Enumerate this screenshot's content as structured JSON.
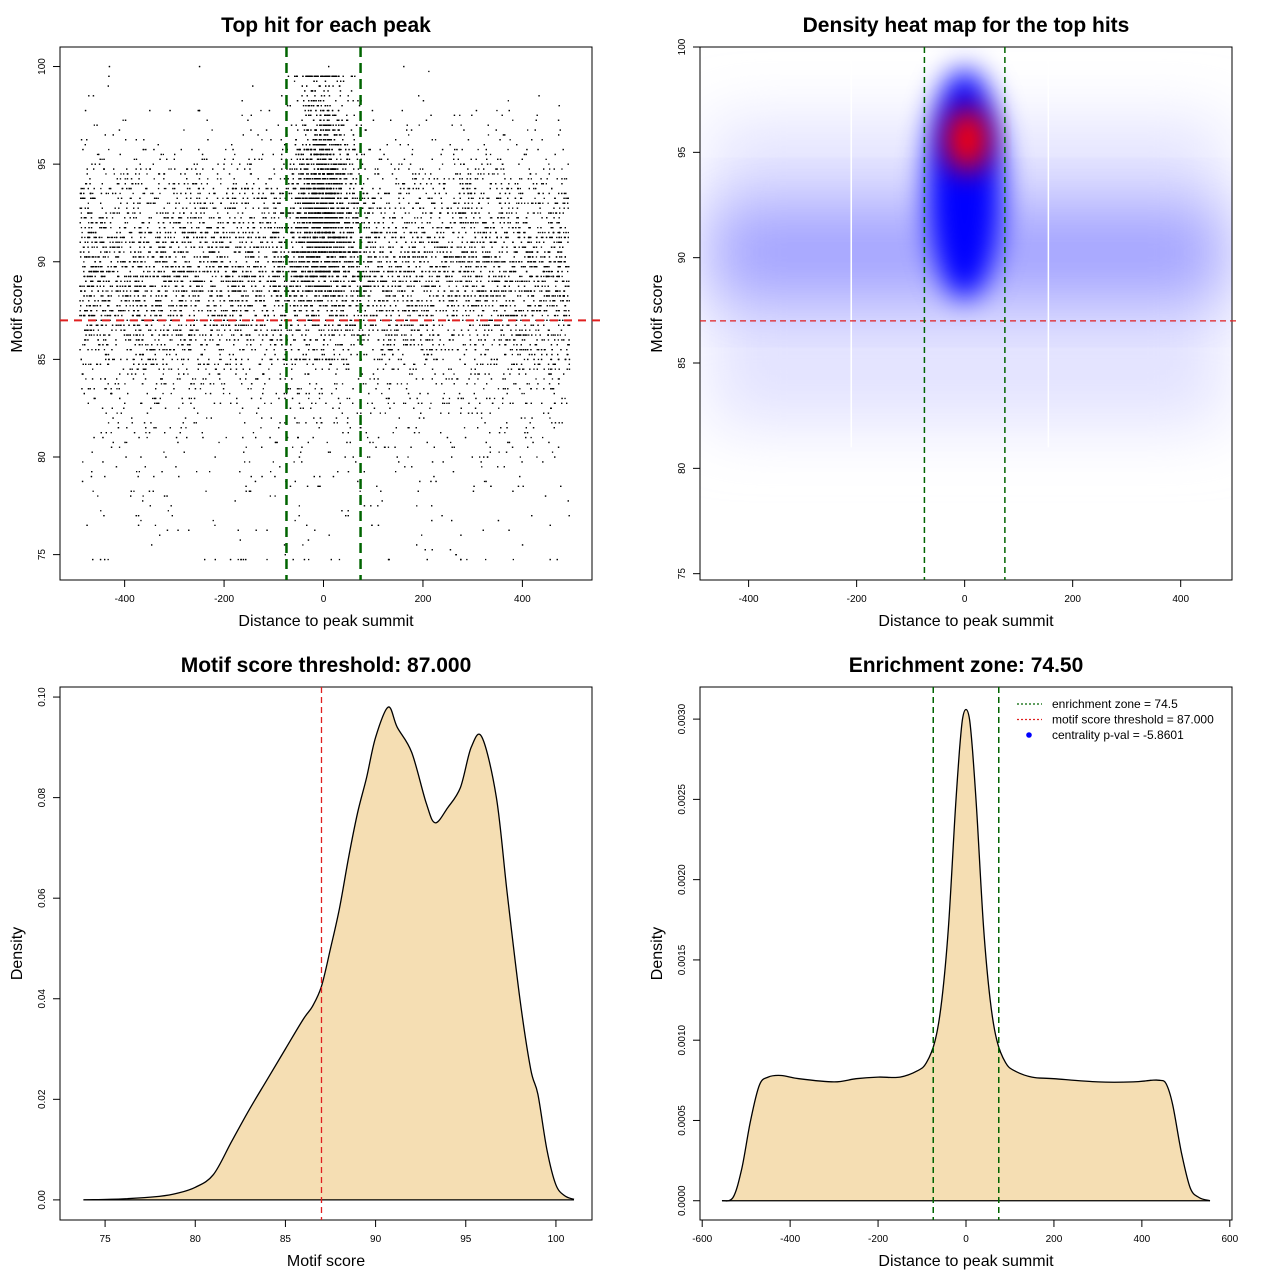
{
  "chart_data": [
    {
      "type": "scatter",
      "title": "Top hit for each peak",
      "xlabel": "Distance to peak summit",
      "ylabel": "Motif score",
      "xlim": [
        -530,
        540
      ],
      "ylim": [
        73.7,
        101.0
      ],
      "xticks": [
        -400,
        -200,
        0,
        200,
        400
      ],
      "yticks": [
        75,
        80,
        85,
        90,
        95,
        100
      ],
      "point_distribution": {
        "x_range": [
          -490,
          495
        ],
        "center_band": [
          -74.5,
          74.5
        ],
        "score_range": [
          74.7,
          100.0
        ],
        "peak_score_flanks": 90,
        "peak_score_center": 95.5
      },
      "annotations": {
        "score_threshold": 87.0,
        "threshold_color": "#e02020",
        "enrichment_zone": [
          -74.5,
          74.5
        ],
        "zone_color": "#006400"
      }
    },
    {
      "type": "heatmap",
      "title": "Density heat map for the top hits",
      "xlabel": "Distance to peak summit",
      "ylabel": "Motif score",
      "xlim": [
        -490,
        495
      ],
      "ylim": [
        74.7,
        100.0
      ],
      "xticks": [
        -400,
        -200,
        0,
        200,
        400
      ],
      "yticks": [
        75,
        80,
        85,
        90,
        95,
        100
      ],
      "color_scale": [
        "#ffffff",
        "#8c8cff",
        "#0000ff",
        "#ff0000"
      ],
      "density_peaks": [
        {
          "x": 5,
          "y": 95.6,
          "level": "max",
          "color": "#ff0000"
        },
        {
          "x": 0,
          "y": 92.0,
          "level": "high",
          "color": "#0000ff"
        },
        {
          "x": -400,
          "y": 90.0,
          "level": "medium",
          "color": "#8c8cff"
        },
        {
          "x": 400,
          "y": 90.0,
          "level": "medium",
          "color": "#8c8cff"
        }
      ],
      "annotations": {
        "score_threshold": 87.0,
        "threshold_color": "#e02020",
        "enrichment_zone": [
          -74.5,
          74.5
        ],
        "zone_color": "#006400"
      }
    },
    {
      "type": "area",
      "title": "Motif score threshold: 87.000",
      "xlabel": "Motif score",
      "ylabel": "Density",
      "xlim": [
        72.5,
        102.0
      ],
      "ylim": [
        -0.004,
        0.102
      ],
      "xticks": [
        75,
        80,
        85,
        90,
        95,
        100
      ],
      "yticks": [
        0.0,
        0.02,
        0.04,
        0.06,
        0.08,
        0.1
      ],
      "ytick_labels": [
        "0.00",
        "0.02",
        "0.04",
        "0.06",
        "0.08",
        "0.10"
      ],
      "fill_color": "#f5deb3",
      "line_color": "#000000",
      "x": [
        73.8,
        76,
        78,
        79,
        80,
        81,
        82,
        83,
        84,
        85,
        86,
        86.5,
        87,
        87.5,
        88,
        88.5,
        89,
        89.5,
        90,
        90.7,
        91.2,
        92,
        92.8,
        93.3,
        94,
        94.7,
        95.3,
        95.9,
        96.7,
        97.3,
        98,
        98.6,
        99,
        99.5,
        100,
        100.5,
        101
      ],
      "y": [
        0.0,
        0.0002,
        0.0007,
        0.0013,
        0.0025,
        0.005,
        0.0115,
        0.018,
        0.024,
        0.03,
        0.036,
        0.0385,
        0.0425,
        0.05,
        0.058,
        0.068,
        0.077,
        0.084,
        0.092,
        0.098,
        0.094,
        0.089,
        0.079,
        0.075,
        0.078,
        0.082,
        0.09,
        0.092,
        0.08,
        0.061,
        0.04,
        0.026,
        0.021,
        0.01,
        0.003,
        0.0008,
        0.0001
      ],
      "annotations": {
        "vline": 87.0,
        "vline_color": "#e02020"
      }
    },
    {
      "type": "area",
      "title": "Enrichment zone: 74.50",
      "xlabel": "Distance to peak summit",
      "ylabel": "Density",
      "xlim": [
        -605,
        605
      ],
      "ylim": [
        -0.00012,
        0.0032
      ],
      "xticks": [
        -600,
        -400,
        -200,
        0,
        200,
        400,
        600
      ],
      "yticks": [
        0.0,
        0.0005,
        0.001,
        0.0015,
        0.002,
        0.0025,
        0.003
      ],
      "ytick_labels": [
        "0.0000",
        "0.0005",
        "0.0010",
        "0.0015",
        "0.0020",
        "0.0025",
        "0.0030"
      ],
      "fill_color": "#f5deb3",
      "line_color": "#000000",
      "x": [
        -555,
        -530,
        -510,
        -490,
        -470,
        -450,
        -420,
        -380,
        -300,
        -250,
        -200,
        -150,
        -110,
        -90,
        -70,
        -55,
        -40,
        -25,
        -15,
        -8,
        0,
        8,
        15,
        25,
        40,
        55,
        70,
        90,
        110,
        150,
        200,
        300,
        380,
        420,
        440,
        455,
        470,
        490,
        510,
        530,
        555
      ],
      "y": [
        0.0,
        2e-05,
        0.0002,
        0.0005,
        0.00072,
        0.00077,
        0.00078,
        0.00076,
        0.00074,
        0.00076,
        0.00077,
        0.00077,
        0.00081,
        0.00086,
        0.001,
        0.00125,
        0.0017,
        0.0024,
        0.0028,
        0.003,
        0.00306,
        0.003,
        0.0028,
        0.0024,
        0.0017,
        0.00125,
        0.001,
        0.00086,
        0.00081,
        0.00077,
        0.00076,
        0.00074,
        0.00074,
        0.00075,
        0.00075,
        0.00073,
        0.0006,
        0.0003,
        8e-05,
        2e-05,
        0.0
      ],
      "annotations": {
        "vlines": [
          -74.5,
          74.5
        ],
        "vline_color": "#006400"
      },
      "legend": {
        "position": "top-right",
        "entries": [
          {
            "label": "enrichment zone = 74.5",
            "color": "#006400",
            "style": "dotted-line"
          },
          {
            "label": "motif score threshold = 87.000",
            "color": "#e02020",
            "style": "dotted-line"
          },
          {
            "label": "centrality p-val = -5.8601",
            "color": "#0000ff",
            "style": "point"
          }
        ]
      }
    }
  ]
}
